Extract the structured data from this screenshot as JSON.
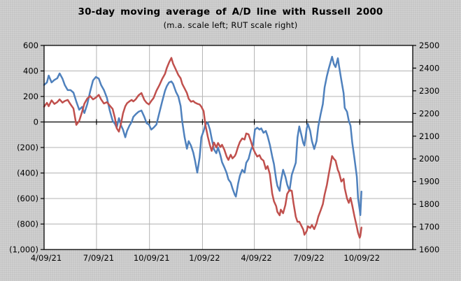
{
  "header": {
    "title": "30-day moving average of A/D line with Russell 2000",
    "subtitle": "(m.a. scale left; RUT scale right)"
  },
  "chart_data": {
    "type": "line",
    "title": "30-day moving average of A/D line with Russell 2000",
    "subtitle": "(m.a. scale left; RUT scale right)",
    "legend": "none",
    "grid": true,
    "colors": {
      "background": "#c6c6c6",
      "plot_background": "#ffffff",
      "gridline": "#b3b3b3",
      "axis": "#000000",
      "ma_line": "#4f81bd",
      "rut_line": "#c0504d"
    },
    "x_axis": {
      "start": "2021-04-09",
      "end": "2023-01-09",
      "ticks": [
        {
          "date": "2021-04-09",
          "label": "4/09/21"
        },
        {
          "date": "2021-07-09",
          "label": "7/09/21"
        },
        {
          "date": "2021-10-09",
          "label": "10/09/21"
        },
        {
          "date": "2022-01-09",
          "label": "1/09/22"
        },
        {
          "date": "2022-04-09",
          "label": "4/09/22"
        },
        {
          "date": "2022-07-09",
          "label": "7/09/22"
        },
        {
          "date": "2022-10-09",
          "label": "10/09/22"
        }
      ]
    },
    "left_axis": {
      "min": -1000,
      "max": 600,
      "ticks": [
        {
          "v": 600,
          "label": "600"
        },
        {
          "v": 400,
          "label": "400"
        },
        {
          "v": 200,
          "label": "200"
        },
        {
          "v": 0,
          "label": "0"
        },
        {
          "v": -200,
          "label": "(200)"
        },
        {
          "v": -400,
          "label": "(400)"
        },
        {
          "v": -600,
          "label": "(600)"
        },
        {
          "v": -800,
          "label": "(800)"
        },
        {
          "v": -1000,
          "label": "(1,000)"
        }
      ]
    },
    "right_axis": {
      "min": 1600,
      "max": 2500,
      "ticks": [
        {
          "v": 2500,
          "label": "2500"
        },
        {
          "v": 2400,
          "label": "2400"
        },
        {
          "v": 2300,
          "label": "2300"
        },
        {
          "v": 2200,
          "label": "2200"
        },
        {
          "v": 2100,
          "label": "2100"
        },
        {
          "v": 2000,
          "label": "2000"
        },
        {
          "v": 1900,
          "label": "1900"
        },
        {
          "v": 1800,
          "label": "1800"
        },
        {
          "v": 1700,
          "label": "1700"
        },
        {
          "v": 1600,
          "label": "1600"
        }
      ]
    },
    "dates": [
      "2021-04-09",
      "2021-04-14",
      "2021-04-17",
      "2021-04-22",
      "2021-04-27",
      "2021-05-02",
      "2021-05-06",
      "2021-05-11",
      "2021-05-15",
      "2021-05-20",
      "2021-05-25",
      "2021-05-30",
      "2021-06-04",
      "2021-06-09",
      "2021-06-14",
      "2021-06-18",
      "2021-06-23",
      "2021-06-28",
      "2021-07-03",
      "2021-07-08",
      "2021-07-13",
      "2021-07-17",
      "2021-07-22",
      "2021-07-27",
      "2021-08-01",
      "2021-08-06",
      "2021-08-10",
      "2021-08-13",
      "2021-08-17",
      "2021-08-21",
      "2021-08-24",
      "2021-08-28",
      "2021-08-31",
      "2021-09-04",
      "2021-09-08",
      "2021-09-11",
      "2021-09-15",
      "2021-09-20",
      "2021-09-25",
      "2021-09-30",
      "2021-10-04",
      "2021-10-08",
      "2021-10-12",
      "2021-10-16",
      "2021-10-21",
      "2021-10-26",
      "2021-10-31",
      "2021-11-05",
      "2021-11-08",
      "2021-11-12",
      "2021-11-16",
      "2021-11-19",
      "2021-11-24",
      "2021-11-28",
      "2021-12-02",
      "2021-12-05",
      "2021-12-09",
      "2021-12-13",
      "2021-12-16",
      "2021-12-20",
      "2021-12-24",
      "2021-12-27",
      "2021-12-31",
      "2022-01-04",
      "2022-01-07",
      "2022-01-11",
      "2022-01-14",
      "2022-01-18",
      "2022-01-22",
      "2022-01-25",
      "2022-01-29",
      "2022-02-02",
      "2022-02-05",
      "2022-02-09",
      "2022-02-12",
      "2022-02-16",
      "2022-02-20",
      "2022-02-23",
      "2022-02-27",
      "2022-03-02",
      "2022-03-06",
      "2022-03-08",
      "2022-03-12",
      "2022-03-15",
      "2022-03-19",
      "2022-03-23",
      "2022-03-26",
      "2022-03-30",
      "2022-04-03",
      "2022-04-07",
      "2022-04-10",
      "2022-04-14",
      "2022-04-18",
      "2022-04-21",
      "2022-04-25",
      "2022-04-29",
      "2022-05-02",
      "2022-05-06",
      "2022-05-10",
      "2022-05-13",
      "2022-05-17",
      "2022-05-19",
      "2022-05-23",
      "2022-05-25",
      "2022-05-29",
      "2022-06-02",
      "2022-06-05",
      "2022-06-09",
      "2022-06-13",
      "2022-06-16",
      "2022-06-20",
      "2022-06-23",
      "2022-06-26",
      "2022-06-29",
      "2022-07-03",
      "2022-07-05",
      "2022-07-09",
      "2022-07-11",
      "2022-07-15",
      "2022-07-18",
      "2022-07-22",
      "2022-07-26",
      "2022-07-29",
      "2022-08-02",
      "2022-08-06",
      "2022-08-09",
      "2022-08-13",
      "2022-08-16",
      "2022-08-20",
      "2022-08-22",
      "2022-08-25",
      "2022-08-28",
      "2022-09-01",
      "2022-09-03",
      "2022-09-07",
      "2022-09-11",
      "2022-09-13",
      "2022-09-17",
      "2022-09-20",
      "2022-09-23",
      "2022-09-26",
      "2022-09-30",
      "2022-10-04",
      "2022-10-06",
      "2022-10-09",
      "2022-10-10",
      "2022-10-12"
    ],
    "series": [
      {
        "id": "ad-ma",
        "name": "30-day moving average of A/D line",
        "axis": "left",
        "color": "#4f81bd",
        "values": [
          290,
          310,
          364,
          310,
          330,
          343,
          381,
          340,
          290,
          250,
          250,
          230,
          160,
          96,
          118,
          70,
          140,
          240,
          326,
          353,
          340,
          290,
          250,
          190,
          90,
          10,
          -15,
          -45,
          30,
          -30,
          -60,
          -120,
          -70,
          -30,
          0,
          40,
          60,
          80,
          90,
          40,
          -10,
          -20,
          -60,
          -45,
          -20,
          70,
          160,
          245,
          280,
          310,
          318,
          300,
          235,
          200,
          125,
          0,
          -120,
          -210,
          -150,
          -185,
          -240,
          -300,
          -397,
          -280,
          -120,
          -70,
          -20,
          -5,
          -60,
          -130,
          -215,
          -245,
          -200,
          -260,
          -315,
          -355,
          -400,
          -450,
          -475,
          -520,
          -570,
          -585,
          -480,
          -420,
          -375,
          -397,
          -320,
          -290,
          -220,
          -180,
          -60,
          -45,
          -60,
          -50,
          -85,
          -70,
          -110,
          -180,
          -270,
          -330,
          -452,
          -500,
          -540,
          -468,
          -375,
          -430,
          -490,
          -540,
          -414,
          -375,
          -320,
          -120,
          -35,
          -90,
          -165,
          -185,
          -50,
          -15,
          -70,
          -150,
          -212,
          -150,
          -35,
          60,
          140,
          270,
          360,
          415,
          480,
          512,
          455,
          430,
          500,
          440,
          330,
          225,
          110,
          80,
          10,
          -30,
          -160,
          -290,
          -430,
          -595,
          -688,
          -730,
          -545
        ]
      },
      {
        "id": "russell-2000",
        "name": "Russell 2000 (RUT)",
        "axis": "right",
        "color": "#c0504d",
        "values": [
          2230,
          2247,
          2232,
          2258,
          2242,
          2250,
          2262,
          2248,
          2255,
          2260,
          2240,
          2222,
          2150,
          2167,
          2207,
          2243,
          2266,
          2277,
          2262,
          2270,
          2282,
          2262,
          2244,
          2250,
          2235,
          2220,
          2180,
          2135,
          2120,
          2160,
          2200,
          2232,
          2245,
          2253,
          2260,
          2253,
          2262,
          2280,
          2290,
          2260,
          2247,
          2240,
          2255,
          2268,
          2300,
          2324,
          2352,
          2375,
          2400,
          2425,
          2445,
          2420,
          2392,
          2370,
          2355,
          2330,
          2310,
          2290,
          2265,
          2252,
          2255,
          2248,
          2243,
          2240,
          2230,
          2210,
          2150,
          2100,
          2060,
          2035,
          2072,
          2050,
          2070,
          2052,
          2062,
          2040,
          2010,
          1995,
          2018,
          2002,
          2012,
          2022,
          2055,
          2075,
          2090,
          2085,
          2112,
          2108,
          2078,
          2045,
          2028,
          2010,
          2016,
          2000,
          1992,
          1955,
          1968,
          1932,
          1847,
          1813,
          1791,
          1766,
          1751,
          1776,
          1760,
          1797,
          1845,
          1862,
          1859,
          1806,
          1745,
          1722,
          1723,
          1708,
          1688,
          1665,
          1682,
          1703,
          1695,
          1708,
          1690,
          1715,
          1745,
          1772,
          1800,
          1842,
          1885,
          1930,
          1985,
          2012,
          2000,
          1992,
          1950,
          1940,
          1900,
          1912,
          1870,
          1825,
          1806,
          1828,
          1795,
          1745,
          1700,
          1674,
          1652,
          1660,
          1697
        ]
      }
    ]
  }
}
